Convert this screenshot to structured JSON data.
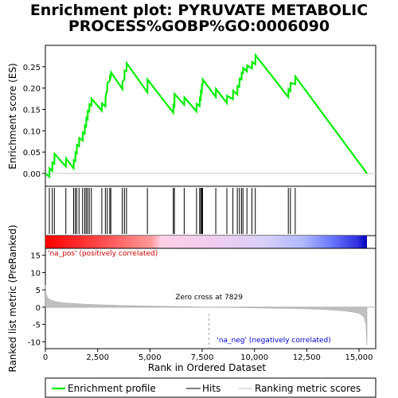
{
  "chart_data": {
    "type": "line",
    "title_line1": "Enrichment plot: PYRUVATE METABOLIC",
    "title_line2": "PROCESS%GOBP%GO:0006090",
    "top_ylabel": "Enrichment score (ES)",
    "bottom_ylabel": "Ranked list metric (PreRanked)",
    "xlabel": "Rank in Ordered Dataset",
    "xlim": [
      0,
      15800
    ],
    "es_ylim": [
      -0.03,
      0.3
    ],
    "metric_ylim": [
      -12,
      17
    ],
    "x_ticks": [
      0,
      2500,
      5000,
      7500,
      10000,
      12500,
      15000
    ],
    "x_tick_labels": [
      "0",
      "2,500",
      "5,000",
      "7,500",
      "10,000",
      "12,500",
      "15,000"
    ],
    "es_ticks": [
      0.0,
      0.05,
      0.1,
      0.15,
      0.2,
      0.25
    ],
    "es_tick_labels": [
      "0.00",
      "0.05",
      "0.10",
      "0.15",
      "0.20",
      "0.25"
    ],
    "metric_ticks": [
      -10,
      -5,
      0,
      5,
      10,
      15
    ],
    "metric_tick_labels": [
      "-10",
      "-5",
      "0",
      "5",
      "10",
      "15"
    ],
    "hits": [
      190,
      330,
      430,
      980,
      1350,
      1430,
      1500,
      1610,
      1780,
      1880,
      1950,
      2020,
      2100,
      2200,
      2700,
      2870,
      2960,
      3080,
      3130,
      3680,
      3780,
      3880,
      4880,
      6120,
      6170,
      6640,
      7230,
      7380,
      7430,
      7480,
      7520,
      8150,
      8680,
      8970,
      9180,
      9280,
      9380,
      9450,
      9640,
      9880,
      10040,
      11620,
      11720,
      11950
    ],
    "es_curve_x": [
      0,
      190,
      200,
      330,
      340,
      430,
      440,
      980,
      990,
      1350,
      1360,
      1430,
      1440,
      1500,
      1510,
      1610,
      1620,
      1780,
      1790,
      1880,
      1890,
      1950,
      1960,
      2020,
      2030,
      2100,
      2110,
      2200,
      2210,
      2700,
      2710,
      2870,
      2880,
      2960,
      2970,
      3080,
      3090,
      3130,
      3140,
      3680,
      3690,
      3780,
      3790,
      3880,
      3890,
      4880,
      4890,
      6120,
      6130,
      6170,
      6180,
      6640,
      6650,
      7230,
      7240,
      7380,
      7390,
      7430,
      7440,
      7480,
      7490,
      7520,
      7530,
      8150,
      8160,
      8680,
      8690,
      8970,
      8980,
      9180,
      9190,
      9280,
      9290,
      9380,
      9390,
      9450,
      9460,
      9640,
      9650,
      9880,
      9890,
      10040,
      10050,
      11620,
      11630,
      11720,
      11730,
      11950,
      11960,
      15380
    ],
    "es_curve_y": [
      0.0,
      -0.008,
      0.012,
      0.006,
      0.026,
      0.023,
      0.046,
      0.016,
      0.035,
      0.012,
      0.031,
      0.029,
      0.049,
      0.047,
      0.067,
      0.064,
      0.083,
      0.077,
      0.096,
      0.093,
      0.112,
      0.11,
      0.13,
      0.127,
      0.147,
      0.145,
      0.162,
      0.159,
      0.175,
      0.147,
      0.164,
      0.157,
      0.178,
      0.196,
      0.212,
      0.217,
      0.228,
      0.226,
      0.237,
      0.198,
      0.214,
      0.221,
      0.241,
      0.24,
      0.258,
      0.19,
      0.22,
      0.142,
      0.16,
      0.158,
      0.186,
      0.161,
      0.178,
      0.145,
      0.163,
      0.158,
      0.176,
      0.174,
      0.193,
      0.191,
      0.21,
      0.206,
      0.22,
      0.179,
      0.198,
      0.165,
      0.182,
      0.174,
      0.194,
      0.185,
      0.205,
      0.203,
      0.222,
      0.22,
      0.236,
      0.235,
      0.247,
      0.239,
      0.253,
      0.246,
      0.261,
      0.256,
      0.277,
      0.179,
      0.197,
      0.193,
      0.212,
      0.209,
      0.227,
      0.0
    ],
    "metric_x": [
      0,
      30,
      80,
      150,
      300,
      500,
      800,
      1200,
      1800,
      2500,
      3500,
      5000,
      6500,
      7829,
      9000,
      10500,
      12000,
      13000,
      13800,
      14300,
      14700,
      15000,
      15150,
      15250,
      15330,
      15380
    ],
    "metric_y": [
      6.5,
      4.0,
      3.0,
      2.4,
      1.9,
      1.6,
      1.3,
      1.1,
      0.9,
      0.7,
      0.5,
      0.3,
      0.15,
      0.0,
      -0.1,
      -0.25,
      -0.4,
      -0.6,
      -0.85,
      -1.1,
      -1.4,
      -1.8,
      -2.3,
      -3.0,
      -5.0,
      -11.0
    ],
    "zero_cross_rank": 7829,
    "zero_cross_label": "Zero cross at 7829",
    "pos_label": "'na_pos' (positively correlated)",
    "neg_label": "'na_neg' (negatively correlated)",
    "legend": {
      "placement": "bottom",
      "items": [
        "Enrichment profile",
        "Hits",
        "Ranking metric scores"
      ]
    },
    "colors": {
      "es_line": "#00ee00",
      "hit": "#000000",
      "metric_fill": "#c0c0c0",
      "zero_line": "#a0a0a0",
      "pos_text": "#cc0000",
      "neg_text": "#0000cc",
      "heat": [
        "#ff0000",
        "#ff6666",
        "#ffcccc",
        "#f0c8f0",
        "#ccccff",
        "#6666ff",
        "#0000ff"
      ]
    }
  }
}
